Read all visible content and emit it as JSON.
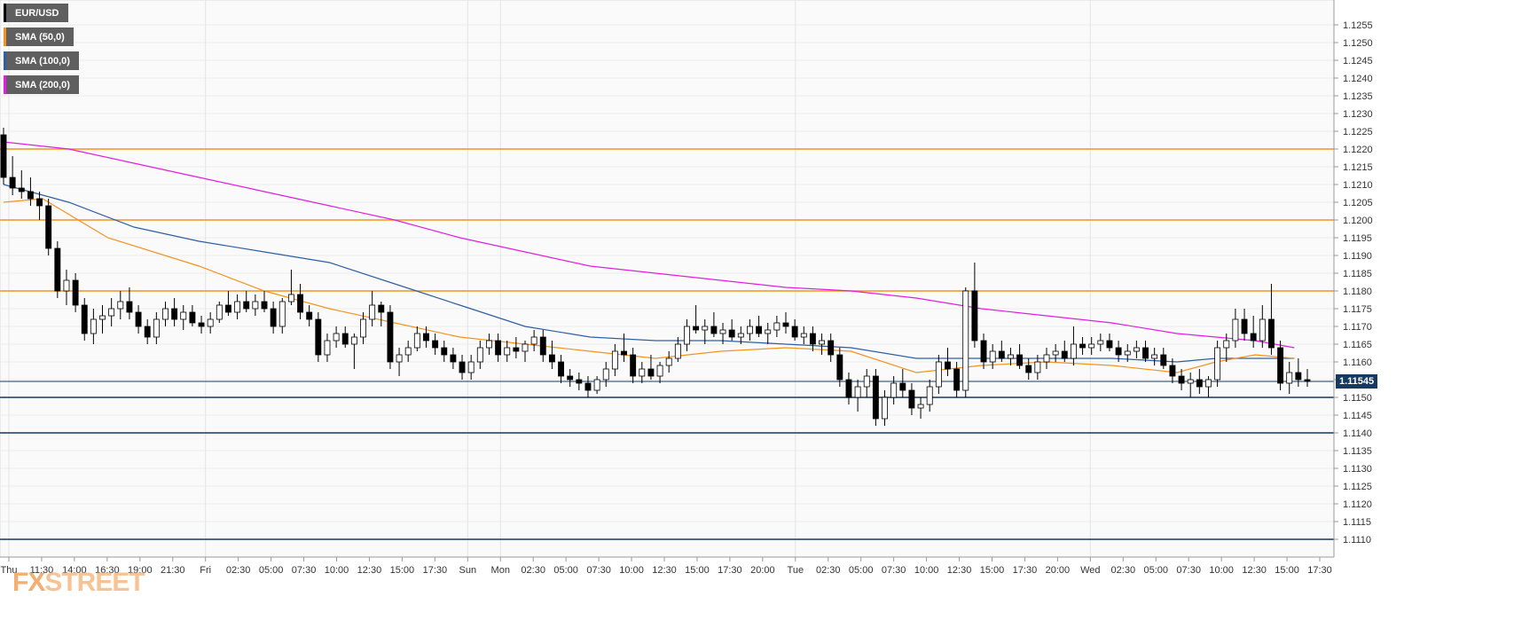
{
  "legend": {
    "symbol": "EUR/USD",
    "symbol_color": "#000000",
    "sma50": "SMA (50,0)",
    "sma50_color": "#f5921e",
    "sma100": "SMA (100,0)",
    "sma100_color": "#2d5fa5",
    "sma200": "SMA (200,0)",
    "sma200_color": "#e11ee1"
  },
  "watermark": {
    "fx": "FX",
    "street": "STREET"
  },
  "current_price": "1.11545",
  "chart_data": {
    "type": "candlestick",
    "ylim": [
      1.1105,
      1.1262
    ],
    "y_ticks": [
      "1.1110",
      "1.1115",
      "1.1120",
      "1.1125",
      "1.1130",
      "1.1135",
      "1.1140",
      "1.1145",
      "1.1150",
      "1.1155",
      "1.1160",
      "1.1165",
      "1.1170",
      "1.1175",
      "1.1180",
      "1.1185",
      "1.1190",
      "1.1195",
      "1.1200",
      "1.1205",
      "1.1210",
      "1.1215",
      "1.1220",
      "1.1225",
      "1.1230",
      "1.1235",
      "1.1240",
      "1.1245",
      "1.1250",
      "1.1255"
    ],
    "x_ticks": [
      "Thu",
      "11:30",
      "14:00",
      "16:30",
      "19:00",
      "21:30",
      "Fri",
      "02:30",
      "05:00",
      "07:30",
      "10:00",
      "12:30",
      "15:00",
      "17:30",
      "Sun",
      "Mon",
      "02:30",
      "05:00",
      "07:30",
      "10:00",
      "12:30",
      "15:00",
      "17:30",
      "20:00",
      "Tue",
      "02:30",
      "05:00",
      "07:30",
      "10:00",
      "12:30",
      "15:00",
      "17:30",
      "20:00",
      "Wed",
      "02:30",
      "05:00",
      "07:30",
      "10:00",
      "12:30",
      "15:00",
      "17:30"
    ],
    "resistance_levels": [
      1.122,
      1.12,
      1.118
    ],
    "resistance_color": "#f5921e",
    "support_levels": [
      1.115,
      1.114,
      1.111
    ],
    "support_color": "#15395f",
    "last_price": 1.11545,
    "candles": [
      [
        1.1224,
        1.1226,
        1.121,
        1.1212
      ],
      [
        1.1212,
        1.1218,
        1.1207,
        1.1209
      ],
      [
        1.1209,
        1.1214,
        1.1206,
        1.1208
      ],
      [
        1.1208,
        1.1212,
        1.1204,
        1.1206
      ],
      [
        1.1206,
        1.1208,
        1.12,
        1.1204
      ],
      [
        1.1204,
        1.1206,
        1.119,
        1.1192
      ],
      [
        1.1192,
        1.1194,
        1.1178,
        1.118
      ],
      [
        1.118,
        1.1186,
        1.1176,
        1.1183
      ],
      [
        1.1183,
        1.1185,
        1.1174,
        1.1176
      ],
      [
        1.1176,
        1.1178,
        1.1166,
        1.1168
      ],
      [
        1.1168,
        1.1175,
        1.1165,
        1.1172
      ],
      [
        1.1172,
        1.1176,
        1.1168,
        1.1173
      ],
      [
        1.1173,
        1.1178,
        1.117,
        1.1175
      ],
      [
        1.1175,
        1.118,
        1.1172,
        1.1177
      ],
      [
        1.1177,
        1.1181,
        1.1172,
        1.1174
      ],
      [
        1.1174,
        1.1176,
        1.1168,
        1.117
      ],
      [
        1.117,
        1.1172,
        1.1165,
        1.1167
      ],
      [
        1.1167,
        1.1174,
        1.1165,
        1.1172
      ],
      [
        1.1172,
        1.1177,
        1.117,
        1.1175
      ],
      [
        1.1175,
        1.1178,
        1.117,
        1.1172
      ],
      [
        1.1172,
        1.1176,
        1.1169,
        1.1174
      ],
      [
        1.1174,
        1.1176,
        1.117,
        1.1171
      ],
      [
        1.1171,
        1.1173,
        1.1168,
        1.117
      ],
      [
        1.117,
        1.1174,
        1.1168,
        1.1172
      ],
      [
        1.1172,
        1.1177,
        1.1171,
        1.1176
      ],
      [
        1.1176,
        1.118,
        1.1173,
        1.1174
      ],
      [
        1.1174,
        1.1179,
        1.1172,
        1.1177
      ],
      [
        1.1177,
        1.118,
        1.1174,
        1.1175
      ],
      [
        1.1175,
        1.1179,
        1.1173,
        1.1177
      ],
      [
        1.1177,
        1.118,
        1.1174,
        1.1175
      ],
      [
        1.1175,
        1.1177,
        1.1168,
        1.117
      ],
      [
        1.117,
        1.1178,
        1.1168,
        1.1177
      ],
      [
        1.1177,
        1.1186,
        1.1176,
        1.1179
      ],
      [
        1.1179,
        1.1182,
        1.1172,
        1.1174
      ],
      [
        1.1174,
        1.1176,
        1.117,
        1.1172
      ],
      [
        1.1172,
        1.1174,
        1.116,
        1.1162
      ],
      [
        1.1162,
        1.1168,
        1.116,
        1.1166
      ],
      [
        1.1166,
        1.117,
        1.1164,
        1.1168
      ],
      [
        1.1168,
        1.117,
        1.1164,
        1.1165
      ],
      [
        1.1165,
        1.1168,
        1.1158,
        1.1167
      ],
      [
        1.1167,
        1.1174,
        1.1165,
        1.1172
      ],
      [
        1.1172,
        1.118,
        1.117,
        1.1176
      ],
      [
        1.1176,
        1.1177,
        1.117,
        1.1174
      ],
      [
        1.1174,
        1.1176,
        1.1158,
        1.116
      ],
      [
        1.116,
        1.1164,
        1.1156,
        1.1162
      ],
      [
        1.1162,
        1.1166,
        1.116,
        1.1164
      ],
      [
        1.1164,
        1.117,
        1.1163,
        1.1168
      ],
      [
        1.1168,
        1.117,
        1.1164,
        1.1166
      ],
      [
        1.1166,
        1.1168,
        1.1162,
        1.1164
      ],
      [
        1.1164,
        1.1166,
        1.116,
        1.1162
      ],
      [
        1.1162,
        1.1164,
        1.1158,
        1.116
      ],
      [
        1.116,
        1.1162,
        1.1155,
        1.1157
      ],
      [
        1.1157,
        1.1162,
        1.1155,
        1.116
      ],
      [
        1.116,
        1.1166,
        1.1158,
        1.1164
      ],
      [
        1.1164,
        1.1168,
        1.1162,
        1.1166
      ],
      [
        1.1166,
        1.1168,
        1.116,
        1.1162
      ],
      [
        1.1162,
        1.1166,
        1.116,
        1.1164
      ],
      [
        1.1164,
        1.1167,
        1.1161,
        1.1163
      ],
      [
        1.1163,
        1.1166,
        1.116,
        1.1165
      ],
      [
        1.1165,
        1.1169,
        1.1163,
        1.1167
      ],
      [
        1.1167,
        1.1169,
        1.116,
        1.1162
      ],
      [
        1.1162,
        1.1166,
        1.1158,
        1.116
      ],
      [
        1.116,
        1.1162,
        1.1154,
        1.1156
      ],
      [
        1.1156,
        1.1158,
        1.1153,
        1.1155
      ],
      [
        1.1155,
        1.1157,
        1.1152,
        1.1154
      ],
      [
        1.1154,
        1.1156,
        1.115,
        1.1152
      ],
      [
        1.1152,
        1.1156,
        1.1151,
        1.1155
      ],
      [
        1.1155,
        1.116,
        1.1153,
        1.1158
      ],
      [
        1.1158,
        1.1165,
        1.1156,
        1.1163
      ],
      [
        1.1163,
        1.1168,
        1.116,
        1.1162
      ],
      [
        1.1162,
        1.1164,
        1.1154,
        1.1156
      ],
      [
        1.1156,
        1.116,
        1.1154,
        1.1158
      ],
      [
        1.1158,
        1.1162,
        1.1155,
        1.1156
      ],
      [
        1.1156,
        1.116,
        1.1154,
        1.1159
      ],
      [
        1.1159,
        1.1163,
        1.1157,
        1.1161
      ],
      [
        1.1161,
        1.1167,
        1.116,
        1.1165
      ],
      [
        1.1165,
        1.1172,
        1.1163,
        1.117
      ],
      [
        1.117,
        1.1176,
        1.1168,
        1.1169
      ],
      [
        1.1169,
        1.1172,
        1.1165,
        1.117
      ],
      [
        1.117,
        1.1174,
        1.1167,
        1.1168
      ],
      [
        1.1168,
        1.1171,
        1.1165,
        1.1169
      ],
      [
        1.1169,
        1.1172,
        1.1166,
        1.1167
      ],
      [
        1.1167,
        1.117,
        1.1165,
        1.1168
      ],
      [
        1.1168,
        1.1172,
        1.1166,
        1.117
      ],
      [
        1.117,
        1.1173,
        1.1167,
        1.1168
      ],
      [
        1.1168,
        1.1171,
        1.1165,
        1.1169
      ],
      [
        1.1169,
        1.1173,
        1.1167,
        1.1171
      ],
      [
        1.1171,
        1.1174,
        1.1168,
        1.117
      ],
      [
        1.117,
        1.1172,
        1.1166,
        1.1167
      ],
      [
        1.1167,
        1.117,
        1.1165,
        1.1168
      ],
      [
        1.1168,
        1.117,
        1.1163,
        1.1165
      ],
      [
        1.1165,
        1.1168,
        1.1162,
        1.1166
      ],
      [
        1.1166,
        1.1168,
        1.116,
        1.1162
      ],
      [
        1.1162,
        1.1164,
        1.1153,
        1.1155
      ],
      [
        1.1155,
        1.1157,
        1.1148,
        1.115
      ],
      [
        1.115,
        1.1155,
        1.1146,
        1.1153
      ],
      [
        1.1153,
        1.1158,
        1.115,
        1.1156
      ],
      [
        1.1156,
        1.1158,
        1.1142,
        1.1144
      ],
      [
        1.1144,
        1.1152,
        1.1142,
        1.115
      ],
      [
        1.115,
        1.1156,
        1.1148,
        1.1154
      ],
      [
        1.1154,
        1.1158,
        1.115,
        1.1152
      ],
      [
        1.1152,
        1.1154,
        1.1145,
        1.1147
      ],
      [
        1.1147,
        1.115,
        1.1144,
        1.1148
      ],
      [
        1.1148,
        1.1155,
        1.1146,
        1.1153
      ],
      [
        1.1153,
        1.1162,
        1.1151,
        1.116
      ],
      [
        1.116,
        1.1164,
        1.1156,
        1.1158
      ],
      [
        1.1158,
        1.116,
        1.115,
        1.1152
      ],
      [
        1.1152,
        1.1181,
        1.115,
        1.118
      ],
      [
        1.118,
        1.1188,
        1.1164,
        1.1166
      ],
      [
        1.1166,
        1.1168,
        1.1158,
        1.116
      ],
      [
        1.116,
        1.1165,
        1.1158,
        1.1163
      ],
      [
        1.1163,
        1.1166,
        1.116,
        1.1161
      ],
      [
        1.1161,
        1.1164,
        1.1159,
        1.1162
      ],
      [
        1.1162,
        1.1165,
        1.1158,
        1.1159
      ],
      [
        1.1159,
        1.1161,
        1.1155,
        1.1157
      ],
      [
        1.1157,
        1.1162,
        1.1155,
        1.116
      ],
      [
        1.116,
        1.1164,
        1.1158,
        1.1162
      ],
      [
        1.1162,
        1.1165,
        1.116,
        1.1163
      ],
      [
        1.1163,
        1.1166,
        1.116,
        1.1161
      ],
      [
        1.1161,
        1.117,
        1.1159,
        1.1165
      ],
      [
        1.1165,
        1.1167,
        1.1162,
        1.1164
      ],
      [
        1.1164,
        1.1167,
        1.1162,
        1.1165
      ],
      [
        1.1165,
        1.1168,
        1.1163,
        1.1166
      ],
      [
        1.1166,
        1.1168,
        1.1163,
        1.1164
      ],
      [
        1.1164,
        1.1166,
        1.116,
        1.1162
      ],
      [
        1.1162,
        1.1165,
        1.116,
        1.1163
      ],
      [
        1.1163,
        1.1166,
        1.1161,
        1.1164
      ],
      [
        1.1164,
        1.1166,
        1.116,
        1.1161
      ],
      [
        1.1161,
        1.1164,
        1.1159,
        1.1162
      ],
      [
        1.1162,
        1.1164,
        1.1158,
        1.1159
      ],
      [
        1.1159,
        1.1161,
        1.1154,
        1.1156
      ],
      [
        1.1156,
        1.1158,
        1.1152,
        1.1154
      ],
      [
        1.1154,
        1.1157,
        1.115,
        1.1155
      ],
      [
        1.1155,
        1.1158,
        1.1151,
        1.1153
      ],
      [
        1.1153,
        1.1156,
        1.115,
        1.1155
      ],
      [
        1.1155,
        1.1166,
        1.1153,
        1.1164
      ],
      [
        1.1164,
        1.1168,
        1.116,
        1.1166
      ],
      [
        1.1166,
        1.1175,
        1.1164,
        1.1172
      ],
      [
        1.1172,
        1.1175,
        1.1166,
        1.1168
      ],
      [
        1.1168,
        1.1173,
        1.1164,
        1.1166
      ],
      [
        1.1166,
        1.1176,
        1.1164,
        1.1172
      ],
      [
        1.1172,
        1.1182,
        1.1162,
        1.1164
      ],
      [
        1.1164,
        1.1166,
        1.1152,
        1.1154
      ],
      [
        1.1154,
        1.116,
        1.1151,
        1.1157
      ],
      [
        1.1157,
        1.1161,
        1.1153,
        1.1155
      ],
      [
        1.1155,
        1.1158,
        1.1153,
        1.11545
      ]
    ],
    "sma50": [
      [
        0,
        1.1205
      ],
      [
        0.03,
        1.1206
      ],
      [
        0.08,
        1.1195
      ],
      [
        0.15,
        1.1187
      ],
      [
        0.2,
        1.118
      ],
      [
        0.25,
        1.1175
      ],
      [
        0.3,
        1.1171
      ],
      [
        0.35,
        1.1167
      ],
      [
        0.4,
        1.1165
      ],
      [
        0.45,
        1.1163
      ],
      [
        0.5,
        1.1161
      ],
      [
        0.55,
        1.1163
      ],
      [
        0.6,
        1.1164
      ],
      [
        0.65,
        1.1163
      ],
      [
        0.7,
        1.1157
      ],
      [
        0.75,
        1.1159
      ],
      [
        0.8,
        1.116
      ],
      [
        0.85,
        1.1159
      ],
      [
        0.9,
        1.1157
      ],
      [
        0.93,
        1.116
      ],
      [
        0.96,
        1.1162
      ],
      [
        0.99,
        1.1161
      ]
    ],
    "sma100": [
      [
        0,
        1.121
      ],
      [
        0.05,
        1.1205
      ],
      [
        0.1,
        1.1198
      ],
      [
        0.15,
        1.1194
      ],
      [
        0.2,
        1.1191
      ],
      [
        0.25,
        1.1188
      ],
      [
        0.3,
        1.1182
      ],
      [
        0.35,
        1.1176
      ],
      [
        0.4,
        1.117
      ],
      [
        0.45,
        1.1167
      ],
      [
        0.5,
        1.1166
      ],
      [
        0.55,
        1.1166
      ],
      [
        0.6,
        1.1165
      ],
      [
        0.65,
        1.1164
      ],
      [
        0.7,
        1.1161
      ],
      [
        0.75,
        1.1161
      ],
      [
        0.8,
        1.1161
      ],
      [
        0.85,
        1.1161
      ],
      [
        0.9,
        1.116
      ],
      [
        0.93,
        1.1161
      ],
      [
        0.96,
        1.1161
      ],
      [
        0.99,
        1.1161
      ]
    ],
    "sma200": [
      [
        0,
        1.1222
      ],
      [
        0.05,
        1.122
      ],
      [
        0.1,
        1.1216
      ],
      [
        0.15,
        1.1212
      ],
      [
        0.2,
        1.1208
      ],
      [
        0.25,
        1.1204
      ],
      [
        0.3,
        1.12
      ],
      [
        0.35,
        1.1195
      ],
      [
        0.4,
        1.1191
      ],
      [
        0.45,
        1.1187
      ],
      [
        0.5,
        1.1185
      ],
      [
        0.55,
        1.1183
      ],
      [
        0.6,
        1.1181
      ],
      [
        0.65,
        1.118
      ],
      [
        0.7,
        1.1178
      ],
      [
        0.75,
        1.1175
      ],
      [
        0.8,
        1.1173
      ],
      [
        0.85,
        1.1171
      ],
      [
        0.9,
        1.1168
      ],
      [
        0.93,
        1.1167
      ],
      [
        0.96,
        1.1166
      ],
      [
        0.99,
        1.1164
      ]
    ]
  }
}
